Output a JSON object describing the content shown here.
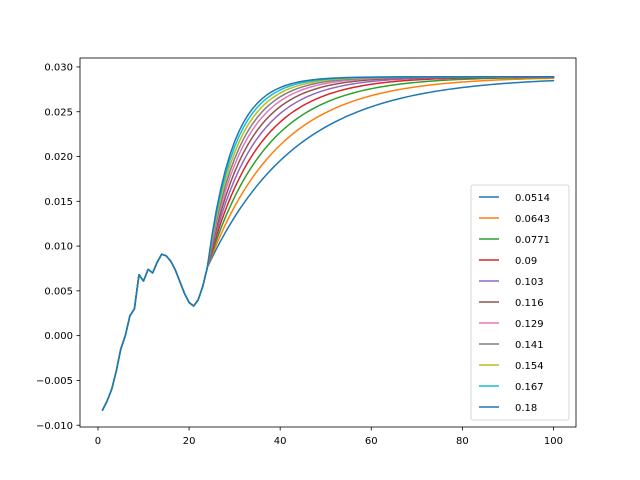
{
  "chart_data": {
    "type": "line",
    "title": "",
    "xlabel": "",
    "ylabel": "",
    "xlim": [
      -3.95,
      104.95
    ],
    "ylim": [
      -0.0102,
      0.031
    ],
    "xticks": [
      0,
      20,
      40,
      60,
      80,
      100
    ],
    "xtick_labels": [
      "0",
      "20",
      "40",
      "60",
      "80",
      "100"
    ],
    "yticks": [
      -0.01,
      -0.005,
      0.0,
      0.005,
      0.01,
      0.015,
      0.02,
      0.025,
      0.03
    ],
    "ytick_labels": [
      "−0.010",
      "−0.005",
      "0.000",
      "0.005",
      "0.010",
      "0.015",
      "0.020",
      "0.025",
      "0.030"
    ],
    "grid": false,
    "legend_position": "lower-right",
    "common_prefix": {
      "x": [
        1,
        2,
        3,
        4,
        5,
        6,
        7,
        8,
        9,
        10,
        11,
        12,
        13,
        14,
        15,
        16,
        17,
        18,
        19,
        20,
        21,
        22,
        23,
        24
      ],
      "y": [
        -0.0083,
        -0.0073,
        -0.006,
        -0.004,
        -0.0015,
        0.0,
        0.0022,
        0.003,
        0.0068,
        0.0061,
        0.0074,
        0.007,
        0.0082,
        0.0091,
        0.0089,
        0.0083,
        0.0073,
        0.006,
        0.0047,
        0.0037,
        0.0033,
        0.004,
        0.0055,
        0.0076
      ]
    },
    "plateau": 0.0289,
    "series": [
      {
        "name": "0.0514",
        "color": "#1f77b4",
        "rate": 0.0514
      },
      {
        "name": "0.0643",
        "color": "#ff7f0e",
        "rate": 0.0643
      },
      {
        "name": "0.0771",
        "color": "#2ca02c",
        "rate": 0.0771
      },
      {
        "name": "0.09",
        "color": "#d62728",
        "rate": 0.09
      },
      {
        "name": "0.103",
        "color": "#9467bd",
        "rate": 0.103
      },
      {
        "name": "0.116",
        "color": "#8c564b",
        "rate": 0.116
      },
      {
        "name": "0.129",
        "color": "#e377c2",
        "rate": 0.129
      },
      {
        "name": "0.141",
        "color": "#7f7f7f",
        "rate": 0.141
      },
      {
        "name": "0.154",
        "color": "#bcbd22",
        "rate": 0.154
      },
      {
        "name": "0.167",
        "color": "#17becf",
        "rate": 0.167
      },
      {
        "name": "0.18",
        "color": "#1f77b4",
        "rate": 0.18
      }
    ]
  }
}
